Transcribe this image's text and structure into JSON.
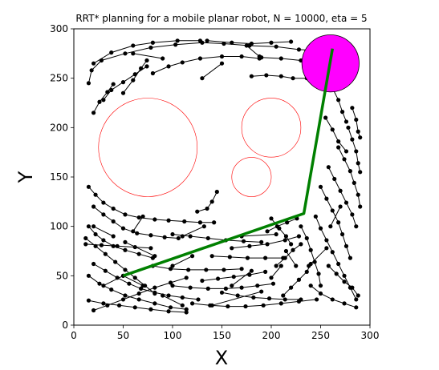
{
  "chart_data": {
    "type": "scatter",
    "title": "RRT* planning for a mobile planar robot, N = 10000, eta = 5",
    "xlabel": "X",
    "ylabel": "Y",
    "xlim": [
      0,
      300
    ],
    "ylim": [
      0,
      300
    ],
    "xticks": [
      0,
      50,
      100,
      150,
      200,
      250,
      300
    ],
    "yticks": [
      0,
      50,
      100,
      150,
      200,
      250,
      300
    ],
    "grid": false,
    "colors": {
      "tree": "#000000",
      "path": "#008000",
      "obstacle": "#ff0000",
      "goal": "#ff00ff"
    },
    "obstacles": [
      {
        "cx": 75,
        "cy": 180,
        "r": 50
      },
      {
        "cx": 200,
        "cy": 200,
        "r": 30
      },
      {
        "cx": 180,
        "cy": 150,
        "r": 20
      }
    ],
    "goal_region": {
      "cx": 260,
      "cy": 265,
      "r": 29
    },
    "path": [
      [
        50,
        50
      ],
      [
        233,
        113
      ],
      [
        262,
        280
      ]
    ],
    "tree_strokes": [
      [
        [
          15,
          245
        ],
        [
          18,
          258
        ],
        [
          28,
          268
        ],
        [
          52,
          275
        ],
        [
          78,
          281
        ],
        [
          103,
          284
        ],
        [
          130,
          286
        ],
        [
          152,
          285
        ],
        [
          178,
          283
        ],
        [
          205,
          282
        ],
        [
          228,
          279
        ],
        [
          250,
          278
        ]
      ],
      [
        [
          20,
          265
        ],
        [
          38,
          276
        ],
        [
          60,
          283
        ],
        [
          80,
          286
        ],
        [
          105,
          288
        ],
        [
          128,
          288
        ]
      ],
      [
        [
          30,
          228
        ],
        [
          38,
          238
        ],
        [
          50,
          246
        ],
        [
          62,
          254
        ],
        [
          74,
          262
        ]
      ],
      [
        [
          20,
          215
        ],
        [
          26,
          226
        ],
        [
          34,
          236
        ],
        [
          40,
          244
        ]
      ],
      [
        [
          80,
          255
        ],
        [
          96,
          262
        ],
        [
          110,
          266
        ],
        [
          128,
          270
        ],
        [
          150,
          272
        ],
        [
          170,
          272
        ],
        [
          188,
          270
        ]
      ],
      [
        [
          50,
          235
        ],
        [
          60,
          248
        ],
        [
          68,
          260
        ],
        [
          74,
          268
        ]
      ],
      [
        [
          135,
          288
        ],
        [
          160,
          286
        ],
        [
          180,
          285
        ],
        [
          200,
          286
        ],
        [
          220,
          287
        ]
      ],
      [
        [
          180,
          252
        ],
        [
          195,
          253
        ],
        [
          210,
          252
        ],
        [
          222,
          250
        ],
        [
          236,
          250
        ]
      ],
      [
        [
          190,
          271
        ],
        [
          210,
          270
        ],
        [
          230,
          268
        ],
        [
          246,
          268
        ]
      ],
      [
        [
          15,
          140
        ],
        [
          22,
          132
        ],
        [
          30,
          124
        ],
        [
          40,
          118
        ],
        [
          52,
          112
        ],
        [
          66,
          109
        ],
        [
          82,
          107
        ],
        [
          96,
          106
        ],
        [
          112,
          105
        ],
        [
          128,
          104
        ],
        [
          142,
          104
        ]
      ],
      [
        [
          20,
          120
        ],
        [
          30,
          112
        ],
        [
          40,
          105
        ],
        [
          50,
          98
        ],
        [
          64,
          93
        ],
        [
          78,
          91
        ],
        [
          92,
          89
        ],
        [
          106,
          88
        ]
      ],
      [
        [
          15,
          100
        ],
        [
          22,
          92
        ],
        [
          30,
          86
        ],
        [
          40,
          80
        ],
        [
          52,
          76
        ],
        [
          66,
          72
        ],
        [
          80,
          68
        ]
      ],
      [
        [
          12,
          82
        ],
        [
          28,
          81
        ],
        [
          44,
          80
        ],
        [
          62,
          79
        ],
        [
          78,
          78
        ]
      ],
      [
        [
          12,
          88
        ],
        [
          22,
          80
        ],
        [
          32,
          72
        ],
        [
          42,
          64
        ],
        [
          52,
          56
        ],
        [
          62,
          48
        ],
        [
          72,
          40
        ],
        [
          82,
          32
        ]
      ],
      [
        [
          20,
          62
        ],
        [
          32,
          55
        ],
        [
          44,
          48
        ],
        [
          56,
          42
        ],
        [
          68,
          37
        ],
        [
          82,
          33
        ],
        [
          96,
          30
        ],
        [
          110,
          28
        ],
        [
          126,
          26
        ]
      ],
      [
        [
          15,
          50
        ],
        [
          26,
          42
        ],
        [
          38,
          36
        ],
        [
          52,
          30
        ],
        [
          66,
          26
        ],
        [
          82,
          22
        ],
        [
          98,
          18
        ],
        [
          114,
          16
        ]
      ],
      [
        [
          15,
          25
        ],
        [
          30,
          22
        ],
        [
          46,
          20
        ],
        [
          62,
          18
        ],
        [
          78,
          16
        ],
        [
          96,
          14
        ],
        [
          114,
          13
        ]
      ],
      [
        [
          20,
          15
        ],
        [
          34,
          20
        ],
        [
          50,
          26
        ],
        [
          66,
          32
        ],
        [
          82,
          38
        ],
        [
          98,
          43
        ],
        [
          114,
          48
        ]
      ],
      [
        [
          100,
          92
        ],
        [
          118,
          90
        ],
        [
          136,
          88
        ],
        [
          154,
          86
        ],
        [
          172,
          85
        ],
        [
          190,
          84
        ]
      ],
      [
        [
          80,
          60
        ],
        [
          98,
          57
        ],
        [
          116,
          56
        ],
        [
          134,
          56
        ],
        [
          152,
          56
        ],
        [
          170,
          57
        ]
      ],
      [
        [
          100,
          40
        ],
        [
          118,
          38
        ],
        [
          136,
          37
        ],
        [
          154,
          37
        ],
        [
          170,
          38
        ],
        [
          186,
          40
        ],
        [
          202,
          42
        ]
      ],
      [
        [
          120,
          22
        ],
        [
          138,
          20
        ],
        [
          156,
          19
        ],
        [
          174,
          19
        ],
        [
          192,
          20
        ],
        [
          210,
          22
        ],
        [
          228,
          24
        ],
        [
          246,
          26
        ]
      ],
      [
        [
          150,
          33
        ],
        [
          166,
          30
        ],
        [
          182,
          28
        ],
        [
          198,
          27
        ],
        [
          214,
          26
        ],
        [
          230,
          26
        ]
      ],
      [
        [
          140,
          70
        ],
        [
          158,
          69
        ],
        [
          176,
          68
        ],
        [
          194,
          68
        ],
        [
          212,
          68
        ]
      ],
      [
        [
          160,
          78
        ],
        [
          178,
          80
        ],
        [
          196,
          82
        ],
        [
          214,
          86
        ],
        [
          228,
          90
        ]
      ],
      [
        [
          130,
          45
        ],
        [
          146,
          47
        ],
        [
          162,
          49
        ],
        [
          178,
          51
        ],
        [
          194,
          54
        ]
      ],
      [
        [
          230,
          100
        ],
        [
          236,
          88
        ],
        [
          240,
          76
        ],
        [
          244,
          64
        ],
        [
          248,
          52
        ],
        [
          250,
          40
        ]
      ],
      [
        [
          245,
          110
        ],
        [
          250,
          98
        ],
        [
          256,
          86
        ],
        [
          262,
          74
        ],
        [
          268,
          62
        ],
        [
          274,
          50
        ],
        [
          280,
          38
        ],
        [
          286,
          26
        ]
      ],
      [
        [
          250,
          140
        ],
        [
          256,
          128
        ],
        [
          262,
          116
        ],
        [
          268,
          104
        ],
        [
          272,
          92
        ],
        [
          276,
          80
        ],
        [
          280,
          68
        ]
      ],
      [
        [
          258,
          160
        ],
        [
          264,
          148
        ],
        [
          270,
          136
        ],
        [
          276,
          124
        ],
        [
          282,
          112
        ],
        [
          286,
          100
        ]
      ],
      [
        [
          268,
          180
        ],
        [
          274,
          168
        ],
        [
          280,
          156
        ],
        [
          284,
          144
        ],
        [
          288,
          132
        ],
        [
          290,
          120
        ]
      ],
      [
        [
          278,
          200
        ],
        [
          282,
          188
        ],
        [
          286,
          176
        ],
        [
          288,
          164
        ],
        [
          290,
          155
        ]
      ],
      [
        [
          282,
          220
        ],
        [
          286,
          208
        ],
        [
          288,
          196
        ],
        [
          290,
          190
        ]
      ],
      [
        [
          255,
          210
        ],
        [
          262,
          198
        ],
        [
          268,
          186
        ],
        [
          276,
          176
        ]
      ],
      [
        [
          262,
          240
        ],
        [
          268,
          228
        ],
        [
          272,
          216
        ],
        [
          276,
          206
        ]
      ],
      [
        [
          240,
          40
        ],
        [
          250,
          32
        ],
        [
          262,
          26
        ],
        [
          274,
          22
        ],
        [
          286,
          18
        ]
      ],
      [
        [
          258,
          60
        ],
        [
          266,
          52
        ],
        [
          274,
          44
        ],
        [
          282,
          38
        ],
        [
          288,
          30
        ]
      ],
      [
        [
          212,
          30
        ],
        [
          220,
          38
        ],
        [
          228,
          46
        ],
        [
          236,
          54
        ],
        [
          240,
          62
        ]
      ],
      [
        [
          205,
          60
        ],
        [
          214,
          68
        ],
        [
          222,
          76
        ],
        [
          230,
          82
        ]
      ],
      [
        [
          196,
          95
        ],
        [
          206,
          100
        ],
        [
          216,
          104
        ],
        [
          226,
          108
        ]
      ],
      [
        [
          250,
          278
        ],
        [
          260,
          285
        ],
        [
          270,
          290
        ],
        [
          278,
          284
        ],
        [
          283,
          272
        ],
        [
          285,
          260
        ],
        [
          280,
          248
        ],
        [
          270,
          242
        ],
        [
          258,
          240
        ],
        [
          246,
          246
        ],
        [
          240,
          258
        ],
        [
          244,
          270
        ],
        [
          250,
          278
        ]
      ],
      [
        [
          252,
          288
        ],
        [
          262,
          276
        ],
        [
          272,
          266
        ],
        [
          280,
          256
        ],
        [
          270,
          258
        ],
        [
          260,
          262
        ],
        [
          250,
          268
        ]
      ],
      [
        [
          242,
          254
        ],
        [
          254,
          252
        ],
        [
          266,
          254
        ],
        [
          278,
          262
        ]
      ],
      [
        [
          246,
          268
        ],
        [
          258,
          272
        ],
        [
          270,
          274
        ],
        [
          282,
          270
        ]
      ],
      [
        [
          125,
          115
        ],
        [
          135,
          118
        ],
        [
          140,
          125
        ],
        [
          145,
          135
        ]
      ],
      [
        [
          200,
          108
        ],
        [
          208,
          98
        ],
        [
          215,
          90
        ],
        [
          220,
          82
        ]
      ]
    ],
    "tree_segments": [
      [
        [
          50,
          50
        ],
        [
          70,
          40
        ]
      ],
      [
        [
          90,
          30
        ],
        [
          110,
          20
        ]
      ],
      [
        [
          140,
          20
        ],
        [
          190,
          34
        ]
      ],
      [
        [
          52,
          84
        ],
        [
          82,
          70
        ]
      ],
      [
        [
          20,
          100
        ],
        [
          40,
          90
        ]
      ],
      [
        [
          60,
          95
        ],
        [
          70,
          110
        ]
      ],
      [
        [
          110,
          90
        ],
        [
          132,
          100
        ]
      ],
      [
        [
          170,
          90
        ],
        [
          205,
          92
        ]
      ],
      [
        [
          215,
          75
        ],
        [
          225,
          60
        ]
      ],
      [
        [
          100,
          60
        ],
        [
          120,
          70
        ]
      ],
      [
        [
          160,
          40
        ],
        [
          180,
          55
        ]
      ],
      [
        [
          200,
          48
        ],
        [
          210,
          60
        ]
      ],
      [
        [
          30,
          40
        ],
        [
          50,
          50
        ]
      ],
      [
        [
          270,
          120
        ],
        [
          260,
          100
        ]
      ],
      [
        [
          238,
          60
        ],
        [
          256,
          78
        ]
      ],
      [
        [
          130,
          250
        ],
        [
          150,
          265
        ]
      ],
      [
        [
          60,
          275
        ],
        [
          90,
          270
        ]
      ],
      [
        [
          175,
          283
        ],
        [
          188,
          272
        ]
      ]
    ]
  }
}
